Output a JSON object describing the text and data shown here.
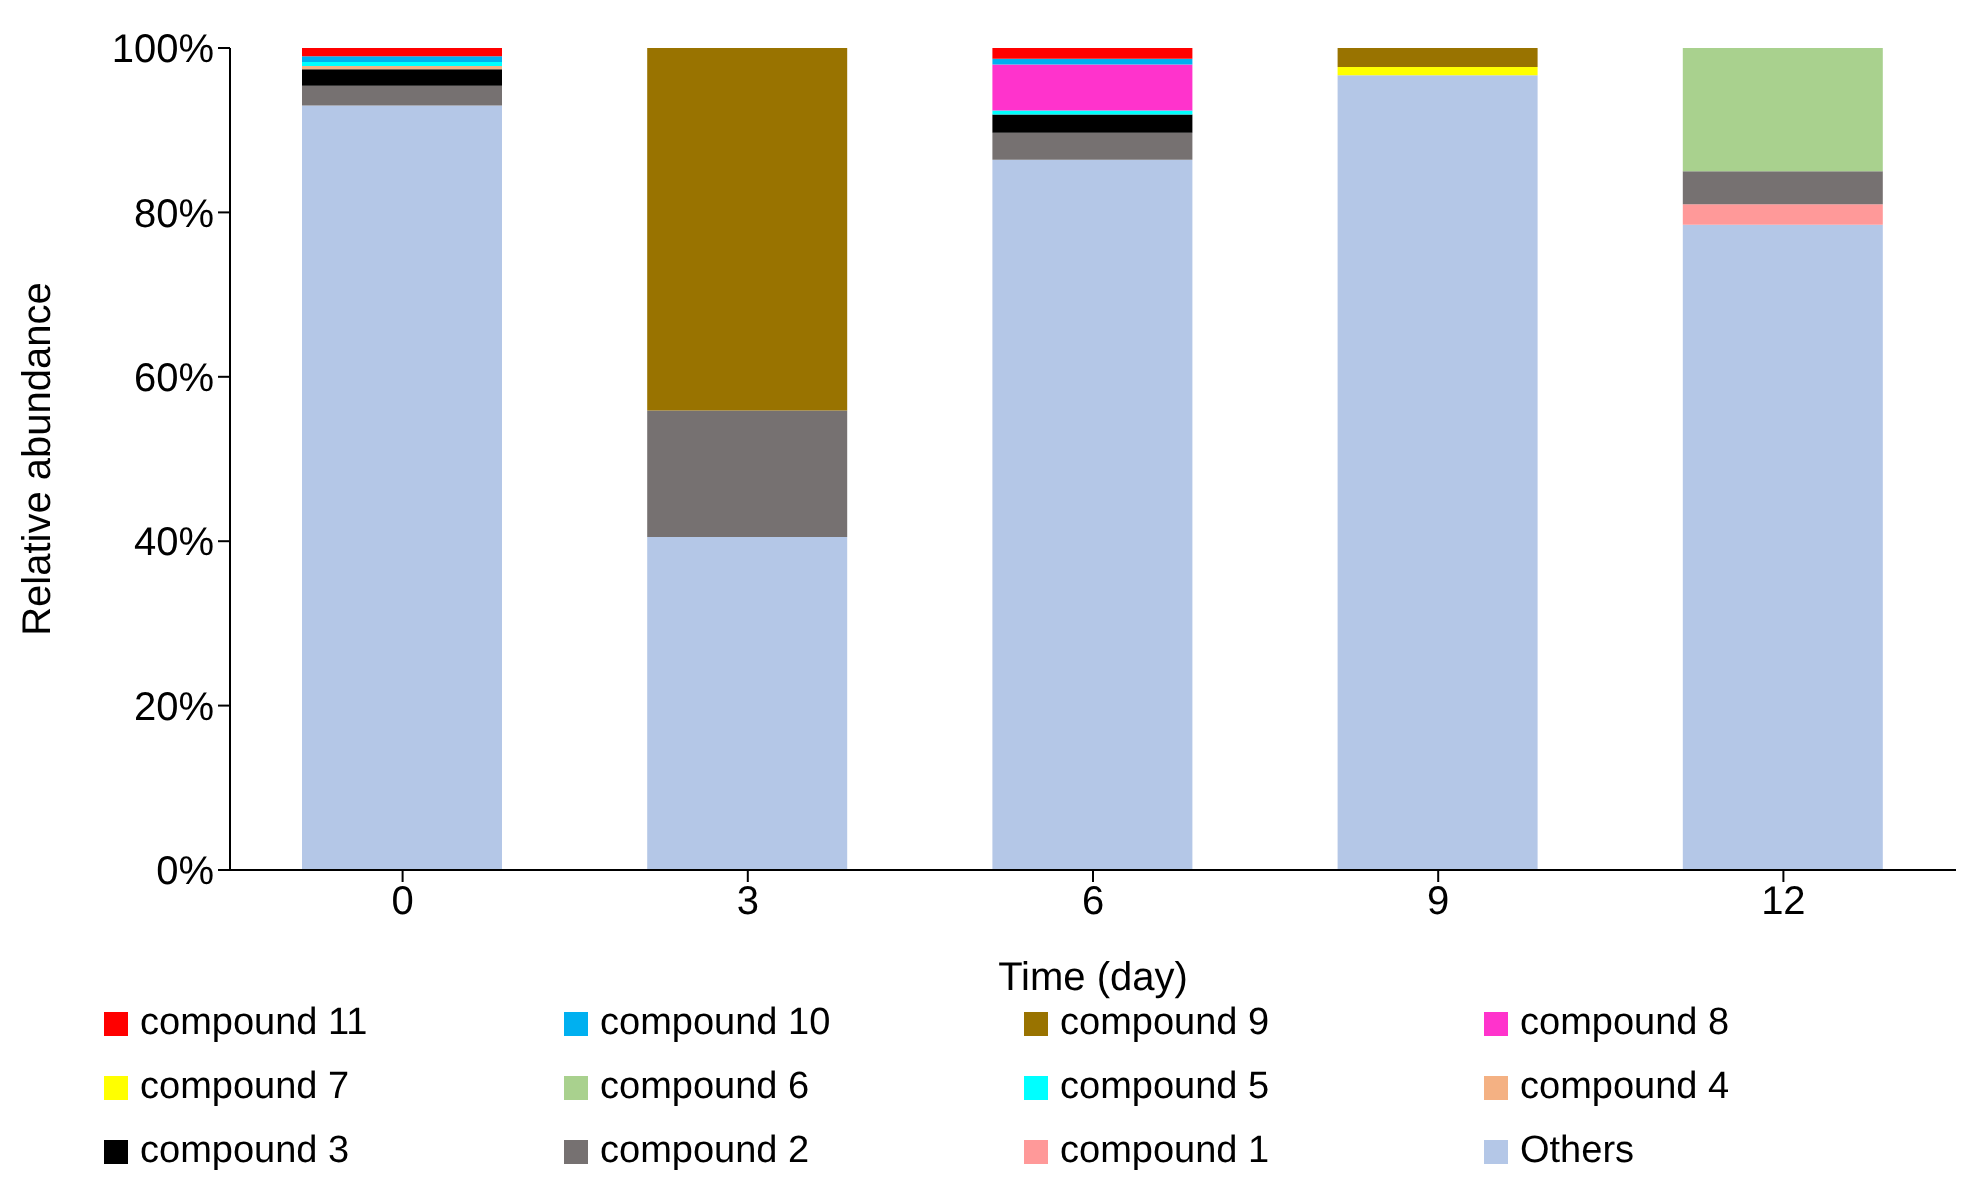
{
  "chart_data": {
    "type": "bar",
    "stacked": true,
    "xlabel": "Time (day)",
    "ylabel": "Relative abundance",
    "categories": [
      "0",
      "3",
      "6",
      "9",
      "12"
    ],
    "ylim": [
      0,
      100
    ],
    "yticks": [
      {
        "value": 0,
        "label": "0%"
      },
      {
        "value": 20,
        "label": "20%"
      },
      {
        "value": 40,
        "label": "40%"
      },
      {
        "value": 60,
        "label": "60%"
      },
      {
        "value": 80,
        "label": "80%"
      },
      {
        "value": 100,
        "label": "100%"
      }
    ],
    "grid": false,
    "legend": "bottom",
    "series": [
      {
        "name": "Others",
        "color": "#b4c7e7",
        "values": [
          93,
          40.5,
          86.4,
          96.7,
          78.5
        ]
      },
      {
        "name": "compound 1",
        "color": "#ff9999",
        "values": [
          0,
          0,
          0,
          0,
          2.5
        ]
      },
      {
        "name": "compound 2",
        "color": "#767171",
        "values": [
          2.4,
          15.4,
          3.3,
          0,
          4
        ]
      },
      {
        "name": "compound 3",
        "color": "#000000",
        "values": [
          2,
          0,
          2.2,
          0,
          0
        ]
      },
      {
        "name": "compound 4",
        "color": "#f4b183",
        "values": [
          0.4,
          0,
          0,
          0,
          0
        ]
      },
      {
        "name": "compound 5",
        "color": "#00ffff",
        "values": [
          0.5,
          0,
          0.5,
          0,
          0
        ]
      },
      {
        "name": "compound 6",
        "color": "#a9d18e",
        "values": [
          0,
          0,
          0,
          0,
          15
        ]
      },
      {
        "name": "compound 7",
        "color": "#ffff00",
        "values": [
          0,
          0,
          0,
          1,
          0
        ]
      },
      {
        "name": "compound 8",
        "color": "#ff33cc",
        "values": [
          0,
          0,
          5.6,
          0,
          0
        ]
      },
      {
        "name": "compound 9",
        "color": "#997300",
        "values": [
          0,
          44.1,
          0,
          2.3,
          0
        ]
      },
      {
        "name": "compound 10",
        "color": "#00b0f0",
        "values": [
          0.7,
          0,
          0.7,
          0,
          0
        ]
      },
      {
        "name": "compound 11",
        "color": "#ff0000",
        "values": [
          1,
          0,
          1.3,
          0,
          0
        ]
      }
    ]
  }
}
